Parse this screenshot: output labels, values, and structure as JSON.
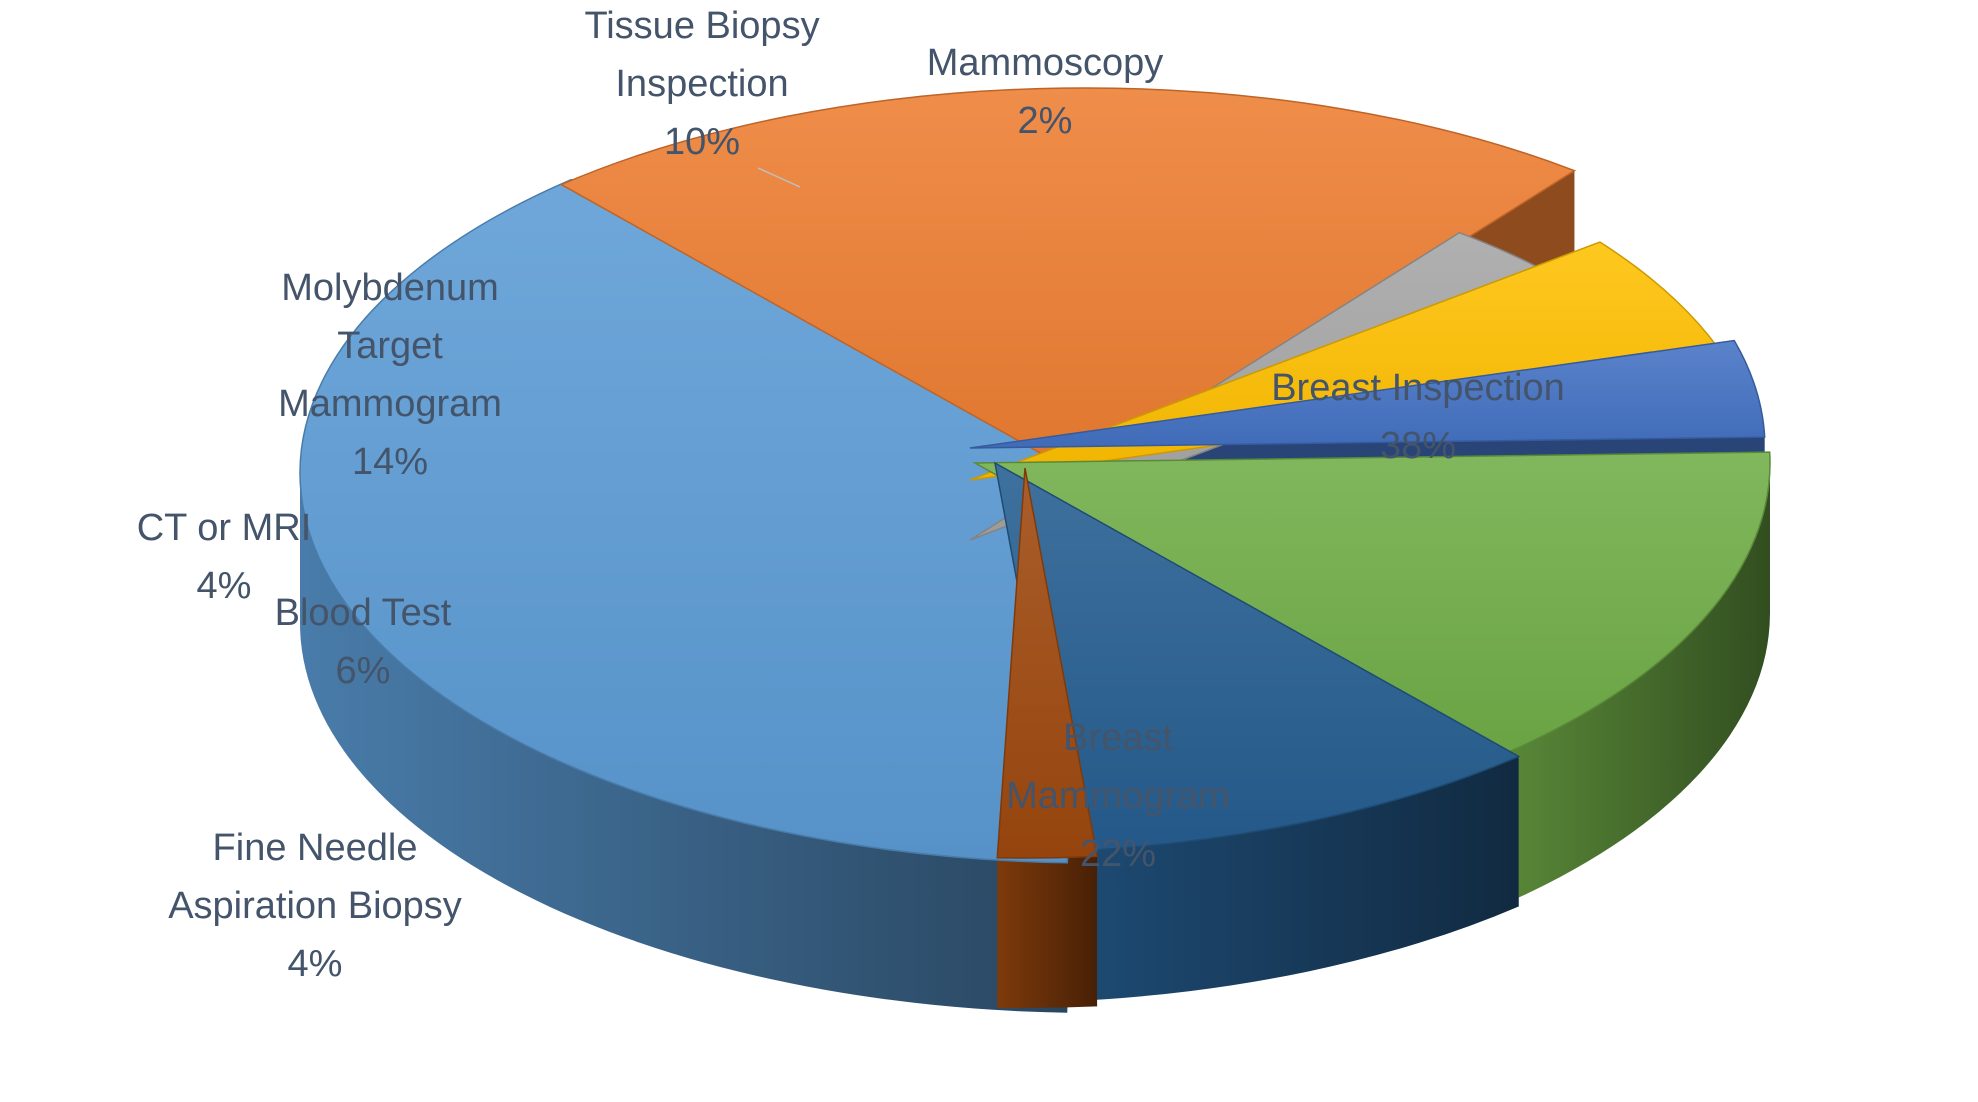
{
  "chart_data": {
    "type": "pie",
    "variant": "3d-exploded",
    "title": "",
    "slices": [
      {
        "name": "Breast Inspection",
        "label_lines": [
          "Breast Inspection"
        ],
        "value": 38,
        "percent_label": "38%",
        "color": "#5b9bd5"
      },
      {
        "name": "Breast Mammogram",
        "label_lines": [
          "Breast",
          "Mammogram"
        ],
        "value": 22,
        "percent_label": "22%",
        "color": "#ed7d31"
      },
      {
        "name": "Fine Needle Aspiration Biopsy",
        "label_lines": [
          "Fine Needle",
          "Aspiration Biopsy"
        ],
        "value": 4,
        "percent_label": "4%",
        "color": "#a5a5a5"
      },
      {
        "name": "Blood Test",
        "label_lines": [
          "Blood Test"
        ],
        "value": 6,
        "percent_label": "6%",
        "color": "#ffc000"
      },
      {
        "name": "CT or MRI",
        "label_lines": [
          "CT or MRI"
        ],
        "value": 4,
        "percent_label": "4%",
        "color": "#4472c4"
      },
      {
        "name": "Molybdenum Target Mammogram",
        "label_lines": [
          "Molybdenum",
          "Target",
          "Mammogram"
        ],
        "value": 14,
        "percent_label": "14%",
        "color": "#70ad47"
      },
      {
        "name": "Tissue Biopsy Inspection",
        "label_lines": [
          "Tissue Biopsy",
          "Inspection"
        ],
        "value": 10,
        "percent_label": "10%",
        "color": "#255e91"
      },
      {
        "name": "Mammoscopy",
        "label_lines": [
          "Mammoscopy"
        ],
        "value": 2,
        "percent_label": "2%",
        "color": "#9e480e"
      }
    ],
    "legend": "none",
    "label_color": "#44546a"
  }
}
